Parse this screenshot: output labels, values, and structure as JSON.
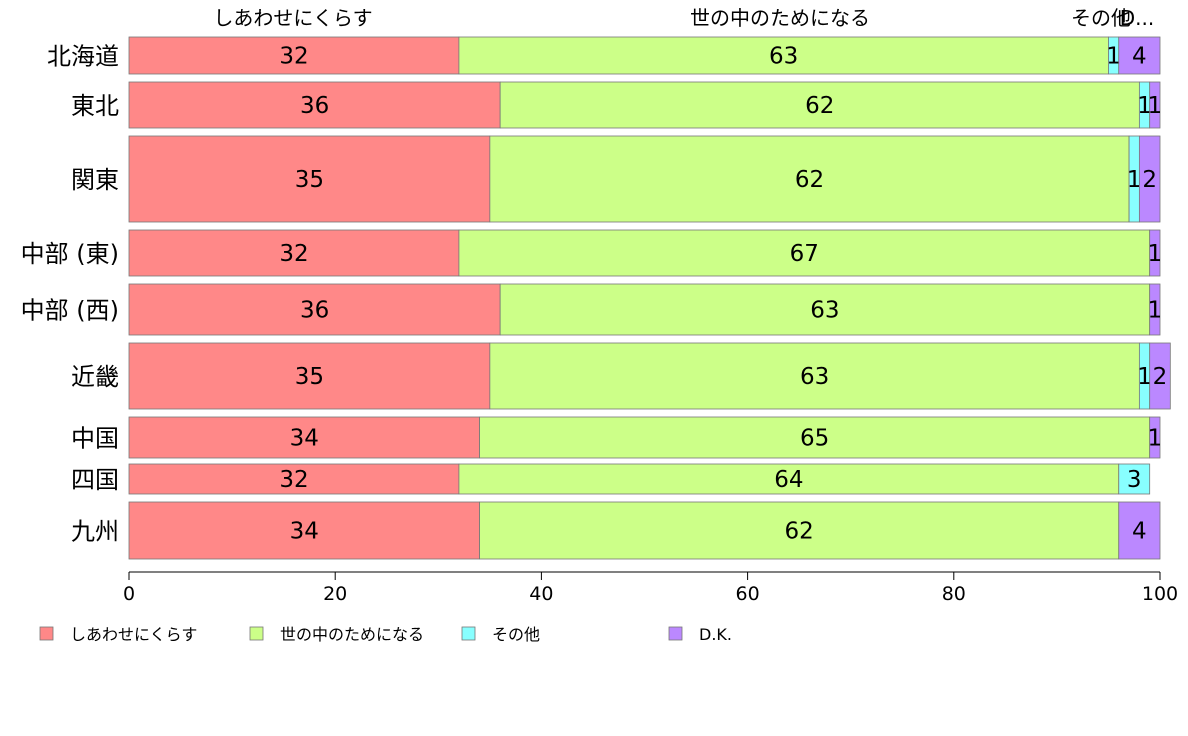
{
  "chart_data": {
    "type": "bar",
    "orientation": "horizontal",
    "stacked": true,
    "categories": [
      "北海道",
      "東北",
      "関東",
      "中部 (東)",
      "中部 (西)",
      "近畿",
      "中国",
      "四国",
      "九州"
    ],
    "series": [
      {
        "name": "しあわせにくらす",
        "color": "#ff8888",
        "values": [
          32,
          36,
          35,
          32,
          36,
          35,
          34,
          32,
          34
        ]
      },
      {
        "name": "世の中のためになる",
        "color": "#ccff88",
        "values": [
          63,
          62,
          62,
          67,
          63,
          63,
          65,
          64,
          62
        ]
      },
      {
        "name": "その他",
        "color": "#88ffff",
        "values": [
          1,
          1,
          1,
          0,
          0,
          1,
          0,
          3,
          0
        ]
      },
      {
        "name": "D.K.",
        "color": "#bb88ff",
        "values": [
          4,
          1,
          2,
          1,
          1,
          2,
          1,
          0,
          4
        ]
      }
    ],
    "top_labels": [
      "しあわせにくらす",
      "世の中のためになる",
      "その他",
      "D..."
    ],
    "xlim": [
      0,
      100
    ],
    "xticks": [
      "0",
      "20",
      "40",
      "60",
      "80",
      "100"
    ],
    "legend_position": "bottom-left",
    "grid": false
  }
}
